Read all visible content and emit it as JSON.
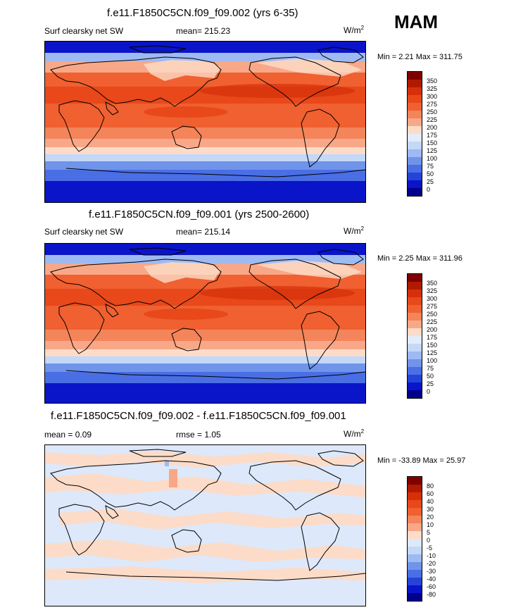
{
  "season": "MAM",
  "panels": [
    {
      "title": "f.e11.F1850C5CN.f09_f09.002 (yrs 6-35)",
      "field_label": "Surf clearsky net SW",
      "stat1": "mean= 215.23",
      "stat2": "",
      "units": "W/m",
      "units_sup": "2",
      "minmax": "Min =   2.21 Max = 311.75",
      "colorbar_labels": [
        "350",
        "325",
        "300",
        "275",
        "250",
        "225",
        "200",
        "175",
        "150",
        "125",
        "100",
        "75",
        "50",
        "25",
        "0"
      ]
    },
    {
      "title": "f.e11.F1850C5CN.f09_f09.001 (yrs 2500-2600)",
      "field_label": "Surf clearsky net SW",
      "stat1": "mean= 215.14",
      "stat2": "",
      "units": "W/m",
      "units_sup": "2",
      "minmax": "Min =   2.25 Max = 311.96",
      "colorbar_labels": [
        "350",
        "325",
        "300",
        "275",
        "250",
        "225",
        "200",
        "175",
        "150",
        "125",
        "100",
        "75",
        "50",
        "25",
        "0"
      ]
    },
    {
      "title": "f.e11.F1850C5CN.f09_f09.002 - f.e11.F1850C5CN.f09_f09.001",
      "field_label": "",
      "stat1": "mean =   0.09",
      "stat2": "rmse =   1.05",
      "units": "W/m",
      "units_sup": "2",
      "minmax": "Min = -33.89 Max =  25.97",
      "colorbar_labels": [
        "80",
        "60",
        "40",
        "30",
        "20",
        "10",
        "5",
        "0",
        "-5",
        "-10",
        "-20",
        "-30",
        "-40",
        "-60",
        "-80"
      ]
    }
  ],
  "colors": {
    "abs_scale": [
      "#800000",
      "#b01a00",
      "#d6300a",
      "#e8481a",
      "#f06030",
      "#f4845a",
      "#f8a888",
      "#fcdcc8",
      "#e2ecfb",
      "#c4d8f8",
      "#9ebaf2",
      "#7094ea",
      "#4a6ee4",
      "#2444d8",
      "#0a14c8",
      "#00008c"
    ],
    "diff_scale": [
      "#800000",
      "#b01a00",
      "#d6300a",
      "#e8481a",
      "#f06030",
      "#f4845a",
      "#f8a888",
      "#fcdcc8",
      "#dde8fa",
      "#c4d8f8",
      "#9ebaf2",
      "#7094ea",
      "#4a6ee4",
      "#2444d8",
      "#0a14c8",
      "#00008c"
    ]
  }
}
